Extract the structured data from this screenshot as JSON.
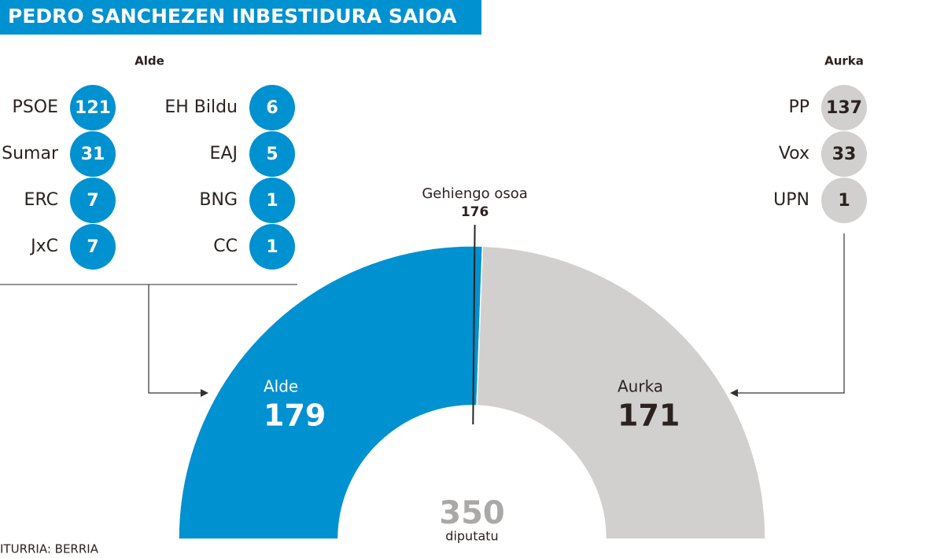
{
  "chart_data": {
    "type": "half-donut",
    "title": "PEDRO SANCHEZEN INBESTIDURA SAIOA",
    "series": [
      {
        "name": "Alde",
        "color": "#0091d0",
        "text_color": "#ffffff",
        "values": [
          179
        ],
        "parties": [
          {
            "name": "PSOE",
            "value": 121
          },
          {
            "name": "Sumar",
            "value": 31
          },
          {
            "name": "ERC",
            "value": 7
          },
          {
            "name": "JxC",
            "value": 7
          },
          {
            "name": "EH Bildu",
            "value": 6
          },
          {
            "name": "EAJ",
            "value": 5
          },
          {
            "name": "BNG",
            "value": 1
          },
          {
            "name": "CC",
            "value": 1
          }
        ]
      },
      {
        "name": "Aurka",
        "color": "#d1d0ce",
        "text_color": "#2b2220",
        "values": [
          171
        ],
        "parties": [
          {
            "name": "PP",
            "value": 137
          },
          {
            "name": "Vox",
            "value": 33
          },
          {
            "name": "UPN",
            "value": 1
          }
        ]
      }
    ],
    "majority": {
      "label": "Gehiengo osoa",
      "value": 176
    },
    "total": {
      "value": 350,
      "label": "diputatu"
    },
    "source": "ITURRIA: BERRIA"
  }
}
